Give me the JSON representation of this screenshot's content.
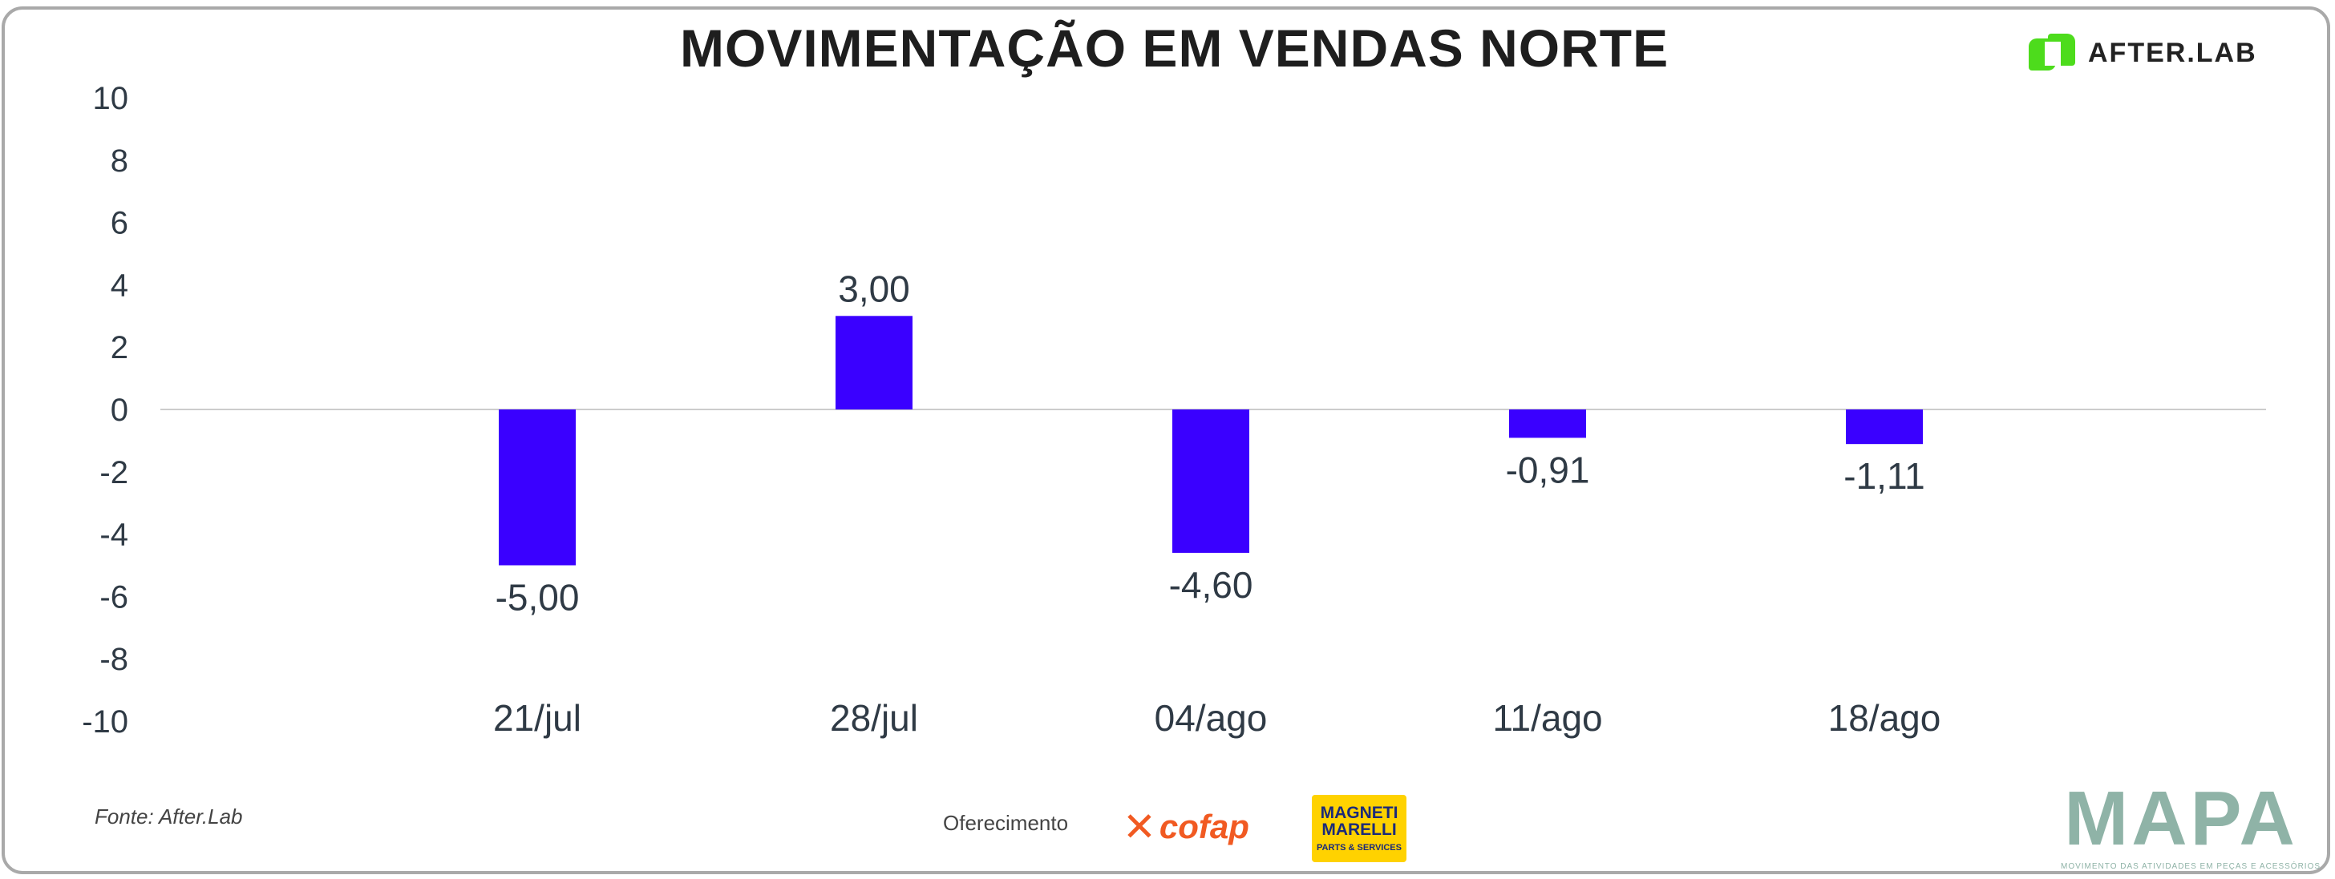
{
  "title": "MOVIMENTAÇÃO EM VENDAS NORTE",
  "logo_afterlab": "AFTER.LAB",
  "footer": {
    "source": "Fonte: After.Lab",
    "sponsor_label": "Oferecimento",
    "cofap": "cofap",
    "magneti_marelli": "MAGNETI MARELLI",
    "magneti_tagline": "PARTS & SERVICES",
    "mapa": "MAPA",
    "mapa_tagline": "MOVIMENTO DAS ATIVIDADES EM PEÇAS E ACESSÓRIOS"
  },
  "colors": {
    "bar": "#3a00ff",
    "axis": "#cccccc",
    "text": "#2f3a45"
  },
  "chart_data": {
    "type": "bar",
    "title": "MOVIMENTAÇÃO EM VENDAS NORTE",
    "categories": [
      "21/jul",
      "28/jul",
      "04/ago",
      "11/ago",
      "18/ago"
    ],
    "values": [
      -5.0,
      3.0,
      -4.6,
      -0.91,
      -1.11
    ],
    "data_labels": [
      "-5,00",
      "3,00",
      "-4,60",
      "-0,91",
      "-1,11"
    ],
    "ylim": [
      -10,
      10
    ],
    "yticks": [
      10,
      8,
      6,
      4,
      2,
      0,
      -2,
      -4,
      -6,
      -8,
      -10
    ],
    "ytick_labels": [
      "10",
      "8",
      "6",
      "4",
      "2",
      "0",
      "-2",
      "-4",
      "-6",
      "-8",
      "-10"
    ],
    "xlabel": "",
    "ylabel": "",
    "grid": false,
    "legend": "none"
  }
}
